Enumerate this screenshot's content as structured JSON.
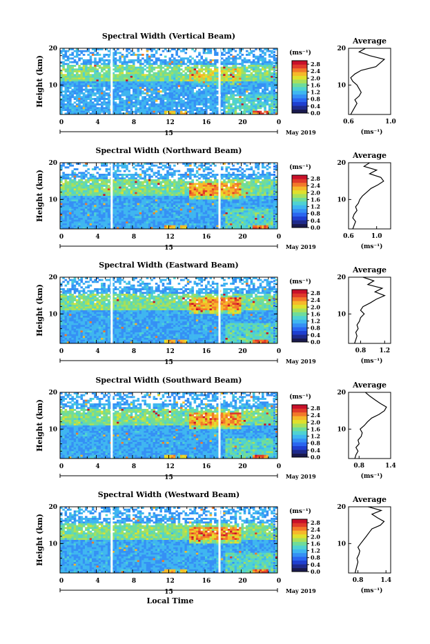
{
  "colors": {
    "colormap": [
      "#1a1a4e",
      "#1e2a8c",
      "#1f3fd0",
      "#2a66f0",
      "#3590f5",
      "#3fb6f0",
      "#4fd2d2",
      "#6fdc9a",
      "#a8e05a",
      "#e0e02c",
      "#f6b82a",
      "#f2782a",
      "#e03a2a",
      "#c8102a"
    ],
    "gap": "#ffffff",
    "frame": "#000000"
  },
  "common": {
    "date_label": "May 2019",
    "day_label": "15",
    "colorbar_unit": "(ms⁻¹)",
    "colorbar_ticks": [
      "2.8",
      "2.4",
      "2.0",
      "1.6",
      "1.2",
      "0.8",
      "0.4",
      "0.0"
    ],
    "avg_title": "Average",
    "avg_xunit": "(ms⁻¹)",
    "xlabel": "Local Time",
    "ylabel": "Height (km)"
  },
  "chart_data": [
    {
      "type": "heatmap",
      "title": "Spectral Width (Vertical Beam)",
      "ylabel": "Height (km)",
      "x_ticks": [
        "0",
        "4",
        "8",
        "12",
        "16",
        "20",
        "0"
      ],
      "y_ticks": [
        "20",
        "10"
      ],
      "xlim": [
        0,
        24
      ],
      "ylim": [
        2,
        20
      ],
      "colorbar": {
        "unit": "(ms⁻¹)",
        "range": [
          0,
          3
        ],
        "ticks": [
          "2.8",
          "2.4",
          "2.0",
          "1.6",
          "1.2",
          "0.8",
          "0.4",
          "0.0"
        ]
      },
      "data_gaps_hours": [
        5.7,
        17.6
      ],
      "average_profile": {
        "title": "Average",
        "xlim": [
          0.6,
          1.0
        ],
        "x_ticks": [
          "0.6",
          "1.0"
        ],
        "y_ticks": [
          "20",
          "10"
        ],
        "xunit": "(ms⁻¹)",
        "height_km": [
          2,
          3,
          4,
          5,
          6,
          7,
          8,
          9,
          10,
          11,
          12,
          13,
          14,
          15,
          16,
          17,
          18,
          19,
          20
        ],
        "values": [
          0.62,
          0.64,
          0.66,
          0.68,
          0.66,
          0.7,
          0.72,
          0.7,
          0.68,
          0.64,
          0.62,
          0.66,
          0.72,
          0.86,
          0.9,
          0.94,
          0.8,
          0.7,
          0.76
        ]
      }
    },
    {
      "type": "heatmap",
      "title": "Spectral Width (Northward Beam)",
      "ylabel": "Height (km)",
      "x_ticks": [
        "0",
        "4",
        "8",
        "12",
        "16",
        "20",
        "0"
      ],
      "y_ticks": [
        "20",
        "10"
      ],
      "xlim": [
        0,
        24
      ],
      "ylim": [
        2,
        20
      ],
      "colorbar": {
        "unit": "(ms⁻¹)",
        "range": [
          0,
          3
        ],
        "ticks": [
          "2.8",
          "2.4",
          "2.0",
          "1.6",
          "1.2",
          "0.8",
          "0.4",
          "0.0"
        ]
      },
      "data_gaps_hours": [
        5.7,
        17.6
      ],
      "average_profile": {
        "title": "Average",
        "xlim": [
          0.6,
          1.2
        ],
        "x_ticks": [
          "0.6",
          "1.0"
        ],
        "y_ticks": [
          "20",
          "10"
        ],
        "xunit": "(ms⁻¹)",
        "height_km": [
          2,
          3,
          4,
          5,
          6,
          7,
          8,
          9,
          10,
          11,
          12,
          13,
          14,
          15,
          16,
          17,
          18,
          19,
          20
        ],
        "values": [
          0.66,
          0.68,
          0.7,
          0.66,
          0.68,
          0.72,
          0.7,
          0.74,
          0.76,
          0.8,
          0.86,
          0.92,
          1.02,
          1.1,
          1.06,
          0.9,
          1.0,
          0.82,
          0.9
        ]
      }
    },
    {
      "type": "heatmap",
      "title": "Spectral Width (Eastward Beam)",
      "ylabel": "Height (km)",
      "x_ticks": [
        "0",
        "4",
        "8",
        "12",
        "16",
        "20",
        "0"
      ],
      "y_ticks": [
        "20",
        "10"
      ],
      "xlim": [
        0,
        24
      ],
      "ylim": [
        2,
        20
      ],
      "colorbar": {
        "unit": "(ms⁻¹)",
        "range": [
          0,
          3
        ],
        "ticks": [
          "2.8",
          "2.4",
          "2.0",
          "1.6",
          "1.2",
          "0.8",
          "0.4",
          "0.0"
        ]
      },
      "data_gaps_hours": [
        5.7,
        17.6
      ],
      "average_profile": {
        "title": "Average",
        "xlim": [
          0.6,
          1.3
        ],
        "x_ticks": [
          "0.8",
          "1.2"
        ],
        "y_ticks": [
          "20",
          "10"
        ],
        "xunit": "(ms⁻¹)",
        "height_km": [
          2,
          3,
          4,
          5,
          6,
          7,
          8,
          9,
          10,
          11,
          12,
          13,
          14,
          15,
          16,
          17,
          18,
          19,
          20
        ],
        "values": [
          0.7,
          0.72,
          0.74,
          0.72,
          0.76,
          0.74,
          0.78,
          0.8,
          0.86,
          0.8,
          0.84,
          0.96,
          1.06,
          1.2,
          1.04,
          1.16,
          0.92,
          1.02,
          0.84
        ]
      }
    },
    {
      "type": "heatmap",
      "title": "Spectral Width (Southward Beam)",
      "ylabel": "Height (km)",
      "x_ticks": [
        "0",
        "4",
        "8",
        "12",
        "16",
        "20",
        "0"
      ],
      "y_ticks": [
        "20",
        "10"
      ],
      "xlim": [
        0,
        24
      ],
      "ylim": [
        2,
        20
      ],
      "colorbar": {
        "unit": "(ms⁻¹)",
        "range": [
          0,
          3
        ],
        "ticks": [
          "2.8",
          "2.4",
          "2.0",
          "1.6",
          "1.2",
          "0.8",
          "0.4",
          "0.0"
        ]
      },
      "data_gaps_hours": [
        5.7,
        17.6
      ],
      "average_profile": {
        "title": "Average",
        "xlim": [
          0.6,
          1.4
        ],
        "x_ticks": [
          "0.8",
          "1.4"
        ],
        "y_ticks": [
          "20",
          "10"
        ],
        "xunit": "(ms⁻¹)",
        "height_km": [
          2,
          3,
          4,
          5,
          6,
          7,
          8,
          9,
          10,
          11,
          12,
          13,
          14,
          15,
          16,
          17,
          18,
          19,
          20
        ],
        "values": [
          0.72,
          0.74,
          0.78,
          0.74,
          0.8,
          0.78,
          0.84,
          0.86,
          0.82,
          0.9,
          0.96,
          1.04,
          1.18,
          1.28,
          1.32,
          1.2,
          1.1,
          1.0,
          0.92
        ]
      }
    },
    {
      "type": "heatmap",
      "title": "Spectral Width (Westward Beam)",
      "ylabel": "Height (km)",
      "xlabel": "Local Time",
      "x_ticks": [
        "0",
        "4",
        "8",
        "12",
        "16",
        "20",
        "0"
      ],
      "y_ticks": [
        "20",
        "10"
      ],
      "xlim": [
        0,
        24
      ],
      "ylim": [
        2,
        20
      ],
      "colorbar": {
        "unit": "(ms⁻¹)",
        "range": [
          0,
          3
        ],
        "ticks": [
          "2.8",
          "2.4",
          "2.0",
          "1.6",
          "1.2",
          "0.8",
          "0.4",
          "0.0"
        ]
      },
      "data_gaps_hours": [
        5.7,
        17.6
      ],
      "average_profile": {
        "title": "Average",
        "xlim": [
          0.6,
          1.5
        ],
        "x_ticks": [
          "0.8",
          "1.4"
        ],
        "y_ticks": [
          "20",
          "10"
        ],
        "xunit": "(ms⁻¹)",
        "height_km": [
          2,
          3,
          4,
          5,
          6,
          7,
          8,
          9,
          10,
          11,
          12,
          13,
          14,
          15,
          16,
          17,
          18,
          19,
          20
        ],
        "values": [
          0.74,
          0.76,
          0.78,
          0.8,
          0.78,
          0.82,
          0.84,
          0.8,
          0.86,
          0.92,
          0.98,
          1.04,
          1.1,
          1.28,
          1.36,
          1.22,
          1.1,
          1.3,
          1.02
        ]
      }
    }
  ]
}
